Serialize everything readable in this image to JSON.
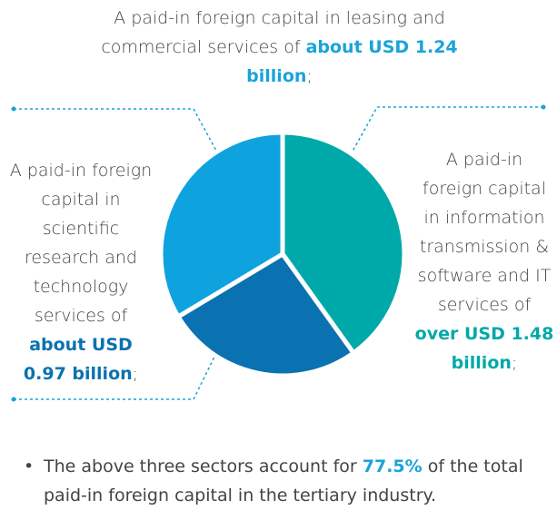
{
  "chart_data": {
    "type": "pie",
    "categories": [
      "A paid-in foreign capital in information transmission & software and IT services of",
      "A paid-in foreign capital in scientific research and technology services of",
      "A paid-in foreign capital in leasing and commercial services of"
    ],
    "values": [
      1.48,
      0.97,
      1.24
    ],
    "value_labels": [
      "over USD 1.48 billion",
      "about USD 0.97 billion",
      "about USD 1.24 billion"
    ],
    "label_end": ";",
    "colors": [
      "#00a9a9",
      "#0a72b0",
      "#0ea3de"
    ],
    "note": {
      "before": "The above three sectors account for",
      "highlight": "77.5%",
      "after": "of the total paid-in foreign capital in the tertiary industry."
    }
  }
}
